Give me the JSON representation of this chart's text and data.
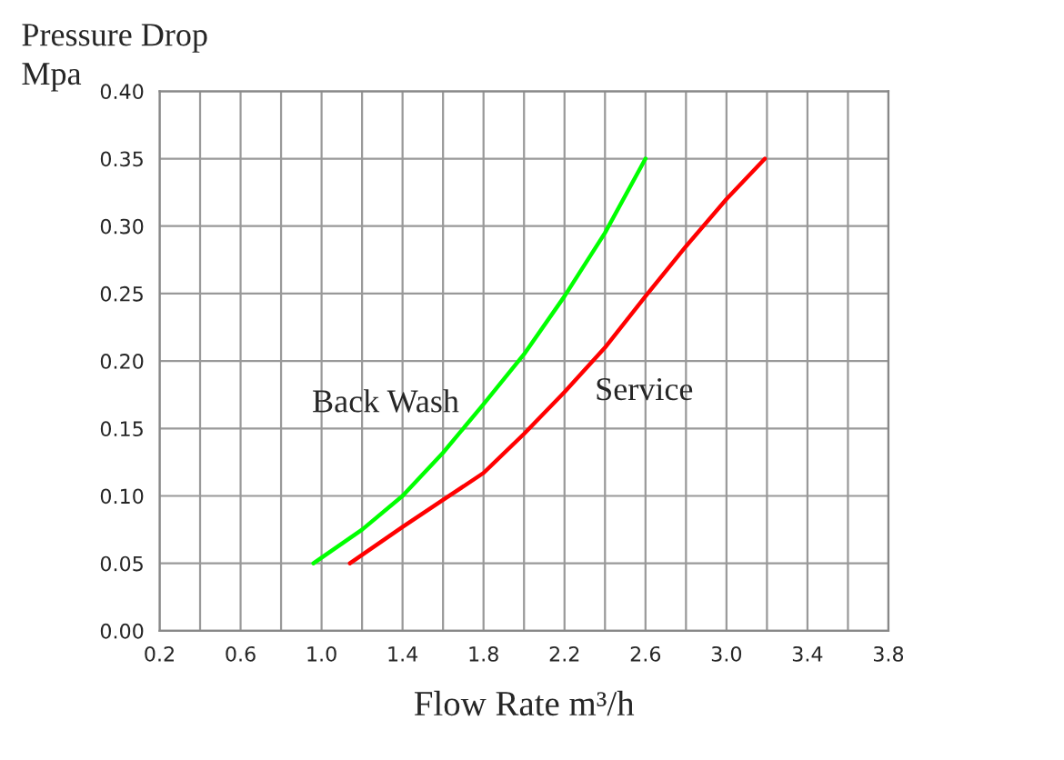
{
  "chart_data": {
    "type": "line",
    "xlabel": "Flow Rate m³/h",
    "ylabel": "Pressure Drop\nMpa",
    "xlim": [
      0.2,
      3.8
    ],
    "ylim": [
      0,
      0.4
    ],
    "xticks": [
      0.2,
      {
        "value": 0.4,
        "label": null
      },
      0.6,
      {
        "value": 0.8,
        "label": null
      },
      {
        "value": 1.0,
        "label": "1.0"
      },
      {
        "value": 1.2,
        "label": null
      },
      1.4,
      {
        "value": 1.6,
        "label": null
      },
      1.8,
      {
        "value": 2.0,
        "label": null
      },
      2.2,
      {
        "value": 2.4,
        "label": null
      },
      2.6,
      {
        "value": 2.8,
        "label": null
      },
      {
        "value": 3.0,
        "label": "3.0"
      },
      {
        "value": 3.2,
        "label": null
      },
      3.4,
      {
        "value": 3.6,
        "label": null
      },
      3.8
    ],
    "yticks": [
      {
        "value": 0,
        "label": "0.00"
      },
      {
        "value": 0.05,
        "label": "0.05"
      },
      {
        "value": 0.1,
        "label": "0.10"
      },
      {
        "value": 0.15,
        "label": "0.15"
      },
      {
        "value": 0.2,
        "label": "0.20"
      },
      {
        "value": 0.25,
        "label": "0.25"
      },
      {
        "value": 0.3,
        "label": "0.30"
      },
      {
        "value": 0.35,
        "label": "0.35"
      },
      {
        "value": 0.4,
        "label": "0.40"
      }
    ],
    "grid": true,
    "legend": false,
    "marker": "none",
    "line_style": "solid",
    "series": [
      {
        "name": "Back Wash",
        "color": "#00ff00",
        "x": [
          0.96,
          1.2,
          1.4,
          1.6,
          1.8,
          2.0,
          2.2,
          2.4,
          2.6
        ],
        "values": [
          0.05,
          0.075,
          0.1,
          0.132,
          0.168,
          0.205,
          0.248,
          0.295,
          0.35
        ]
      },
      {
        "name": "Service",
        "color": "#ff0000",
        "x": [
          1.14,
          1.4,
          1.6,
          1.8,
          2.0,
          2.2,
          2.4,
          2.6,
          2.8,
          3.0,
          3.19
        ],
        "values": [
          0.05,
          0.077,
          0.097,
          0.117,
          0.146,
          0.177,
          0.21,
          0.248,
          0.285,
          0.32,
          0.35
        ]
      }
    ]
  }
}
